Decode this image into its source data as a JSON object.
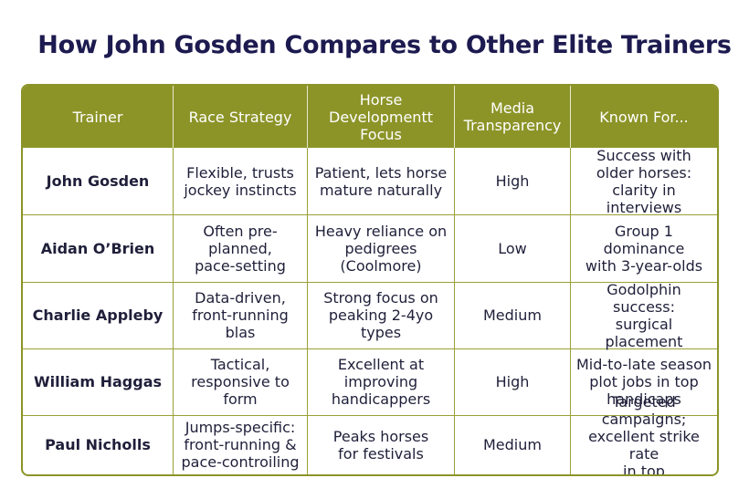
{
  "title": "How John Gosden Compares to Other Elite Trainers",
  "table": {
    "headers": [
      "Trainer",
      "Race Strategy",
      "Horse\nDevelopmentt\nFocus",
      "Media\nTransparency",
      "Known For..."
    ],
    "rows": [
      {
        "trainer": "John Gosden",
        "strategy": "Flexible, trusts\njockey instincts",
        "focus": "Patient, lets horse\nmature naturally",
        "media": "High",
        "known": "Success with\nolder horses:\nclarity in interviews"
      },
      {
        "trainer": "Aidan O’Brien",
        "strategy": "Often pre-planned,\npace-setting",
        "focus": "Heavy reliance on\npedigrees\n(Coolmore)",
        "media": "Low",
        "known": "Group 1 dominance\nwith 3-year-olds"
      },
      {
        "trainer": "Charlie Appleby",
        "strategy": "Data-driven,\nfront-running blas",
        "focus": "Strong focus on\npeaking 2-4yo types",
        "media": "Medium",
        "known": "Godolphin success:\nsurgical placement"
      },
      {
        "trainer": "William Haggas",
        "strategy": "Tactical,\nresponsive to\nform",
        "focus": "Excellent at\nimproving\nhandicappers",
        "media": "High",
        "known": "Mid-to-late season\nplot jobs in top\nhandicaps"
      },
      {
        "trainer": "Paul Nicholls",
        "strategy": "Jumps-specific:\nfront-running &\npace-controiling",
        "focus": "Peaks horses\nfor festivals",
        "media": "Medium",
        "known": "Targeted campaigns;\nexcellent strike rate\nin top cnases/hurdles"
      }
    ]
  }
}
